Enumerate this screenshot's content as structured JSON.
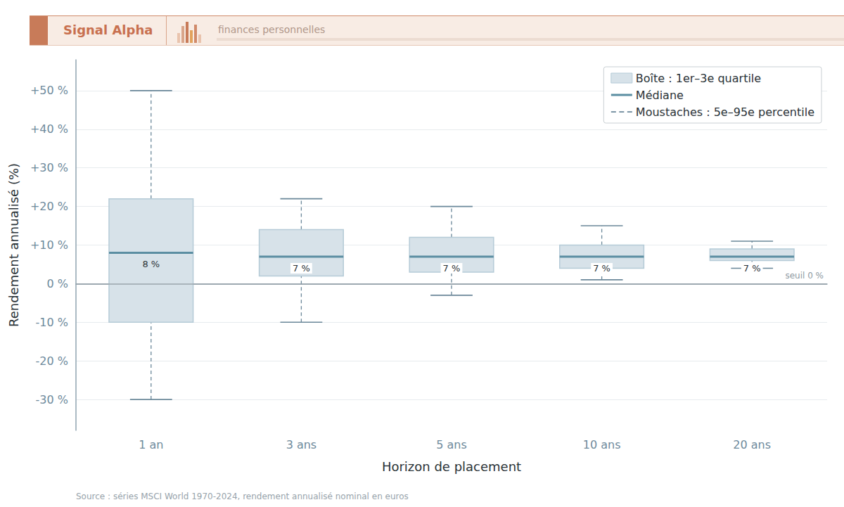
{
  "chart_data": {
    "type": "boxplot",
    "title": "Signal Alpha",
    "subtitle": "finances personnelles",
    "source": "Source : séries MSCI World 1970-2024, rendement annualisé nominal en euros",
    "x_label": "Horizon de placement",
    "y_label": "Rendement annualisé (%)",
    "categories": [
      "1 an",
      "3 ans",
      "5 ans",
      "10 ans",
      "20 ans"
    ],
    "series": [
      {
        "name": "Boîte : 1er–3e quartile",
        "color": "#d7e2e9",
        "q1": [
          -10,
          2,
          3,
          4,
          6
        ],
        "q3": [
          22,
          14,
          12,
          10,
          9
        ]
      },
      {
        "name": "Médiane",
        "color": "#5b8ea2",
        "values": [
          8,
          7,
          7,
          7,
          7
        ],
        "value_labels": [
          "8 %",
          "7 %",
          "7 %",
          "7 %",
          "7 %"
        ]
      },
      {
        "name": "Moustaches : 5e–95e percentile",
        "color": "#6a8799",
        "line_style": "dashed",
        "low": [
          -30,
          -10,
          -3,
          1,
          4
        ],
        "high": [
          50,
          22,
          20,
          15,
          11
        ]
      }
    ],
    "reference_line": {
      "value": 0,
      "label": "seuil 0 %"
    },
    "ylim": [
      -38,
      58
    ],
    "yticks": [
      {
        "value": -30,
        "label": "-30 %"
      },
      {
        "value": -20,
        "label": "-20 %"
      },
      {
        "value": -10,
        "label": "-10 %"
      },
      {
        "value": 0,
        "label": "0 %"
      },
      {
        "value": 10,
        "label": "+10 %"
      },
      {
        "value": 20,
        "label": "+20 %"
      },
      {
        "value": 30,
        "label": "+30 %"
      },
      {
        "value": 40,
        "label": "+40 %"
      },
      {
        "value": 50,
        "label": "+50 %"
      }
    ],
    "grid": true,
    "legend": "upper right",
    "data_labels": true
  }
}
